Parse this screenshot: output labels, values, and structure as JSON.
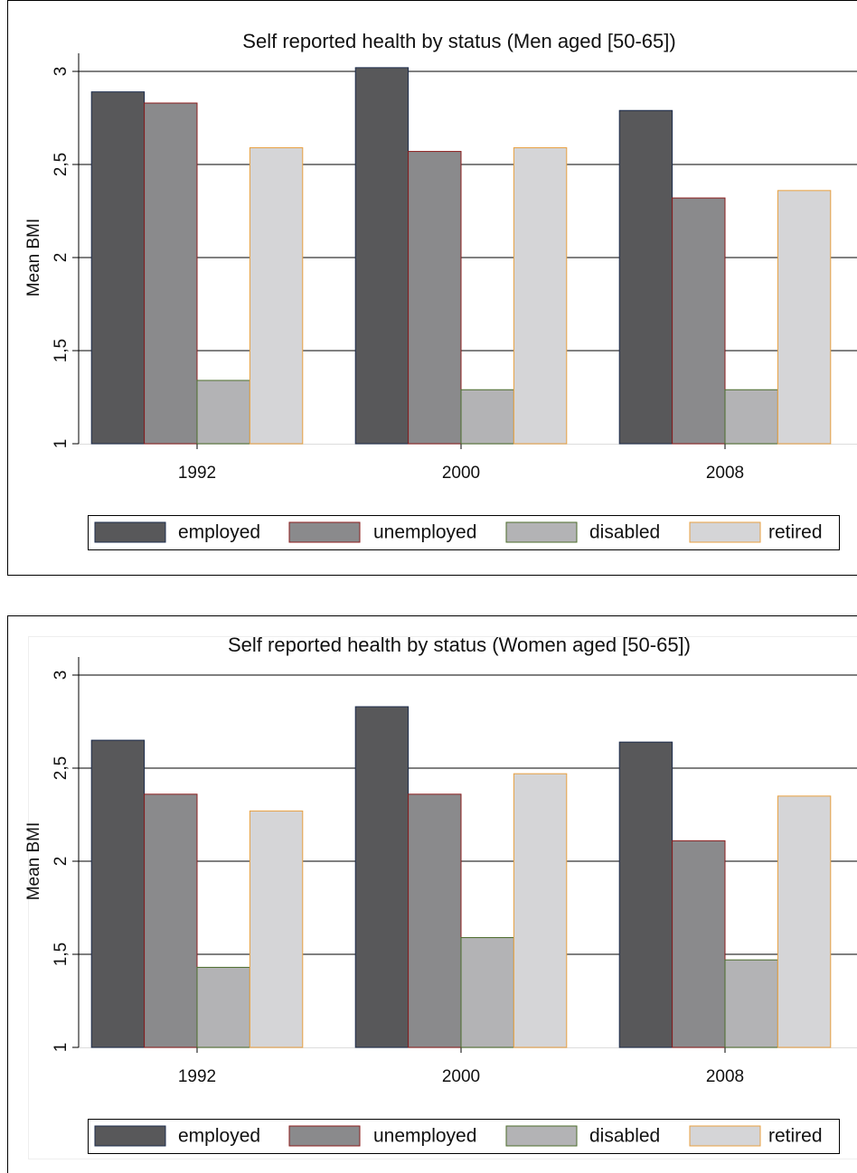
{
  "chart_data": [
    {
      "type": "bar",
      "title": "Self reported health by status (Men aged [50-65])",
      "y_label": "Mean BMI",
      "categories": [
        "1992",
        "2000",
        "2008"
      ],
      "series": [
        {
          "name": "employed",
          "color": "#58585a",
          "edgecolor": "#1c2c4c",
          "values": [
            2.89,
            3.02,
            2.79
          ]
        },
        {
          "name": "unemployed",
          "color": "#8a8a8c",
          "edgecolor": "#8b1c1c",
          "values": [
            2.83,
            2.57,
            2.32
          ]
        },
        {
          "name": "disabled",
          "color": "#b3b3b5",
          "edgecolor": "#4c6c2c",
          "values": [
            1.34,
            1.29,
            1.29
          ]
        },
        {
          "name": "retired",
          "color": "#d5d5d7",
          "edgecolor": "#e8a040",
          "values": [
            2.59,
            2.59,
            2.36
          ]
        }
      ],
      "ylim": [
        1,
        3
      ],
      "yticks": [
        1,
        {
          "value": 1.5,
          "label": "1,5"
        },
        2,
        {
          "value": 2.5,
          "label": "2,5"
        },
        3
      ],
      "grid": true
    },
    {
      "type": "bar",
      "title": "Self reported health by status (Women aged [50-65])",
      "y_label": "Mean BMI",
      "categories": [
        "1992",
        "2000",
        "2008"
      ],
      "series": [
        {
          "name": "employed",
          "color": "#58585a",
          "edgecolor": "#1c2c4c",
          "values": [
            2.65,
            2.83,
            2.64
          ]
        },
        {
          "name": "unemployed",
          "color": "#8a8a8c",
          "edgecolor": "#8b1c1c",
          "values": [
            2.36,
            2.36,
            2.11
          ]
        },
        {
          "name": "disabled",
          "color": "#b3b3b5",
          "edgecolor": "#4c6c2c",
          "values": [
            1.43,
            1.59,
            1.47
          ]
        },
        {
          "name": "retired",
          "color": "#d5d5d7",
          "edgecolor": "#e8a040",
          "values": [
            2.27,
            2.47,
            2.35
          ]
        }
      ],
      "ylim": [
        1,
        3
      ],
      "yticks": [
        1,
        {
          "value": 1.5,
          "label": "1,5"
        },
        2,
        {
          "value": 2.5,
          "label": "2,5"
        },
        3
      ],
      "grid": true
    }
  ]
}
